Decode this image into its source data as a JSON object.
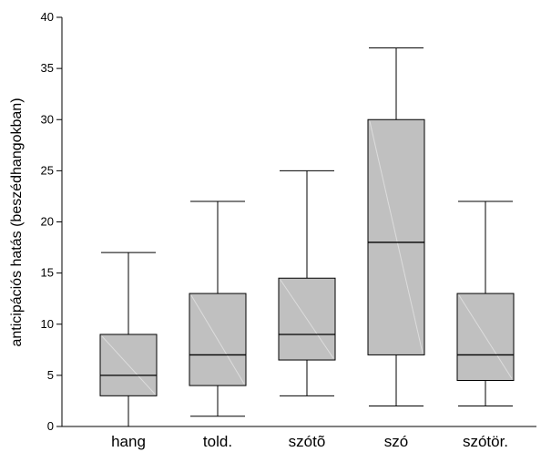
{
  "chart_data": {
    "type": "boxplot",
    "title": "",
    "xlabel": "",
    "ylabel": "anticipációs hatás (beszédhangokban)",
    "ylim": [
      0,
      40
    ],
    "yticks": [
      0,
      5,
      10,
      15,
      20,
      25,
      30,
      35,
      40
    ],
    "grid": false,
    "categories": [
      "hang",
      "told.",
      "szótõ",
      "szó",
      "szótör."
    ],
    "boxes": [
      {
        "category": "hang",
        "min": 0,
        "q1": 3,
        "median": 5,
        "q3": 9,
        "max": 17
      },
      {
        "category": "told.",
        "min": 1,
        "q1": 4,
        "median": 7,
        "q3": 13,
        "max": 22
      },
      {
        "category": "szótõ",
        "min": 3,
        "q1": 6.5,
        "median": 9,
        "q3": 14.5,
        "max": 25
      },
      {
        "category": "szó",
        "min": 2,
        "q1": 7,
        "median": 18,
        "q3": 30,
        "max": 37
      },
      {
        "category": "szótör.",
        "min": 2,
        "q1": 4.5,
        "median": 7,
        "q3": 13,
        "max": 22
      }
    ],
    "colors": {
      "box_fill": "#c0c0c0",
      "stroke": "#000000",
      "background": "#ffffff"
    }
  }
}
